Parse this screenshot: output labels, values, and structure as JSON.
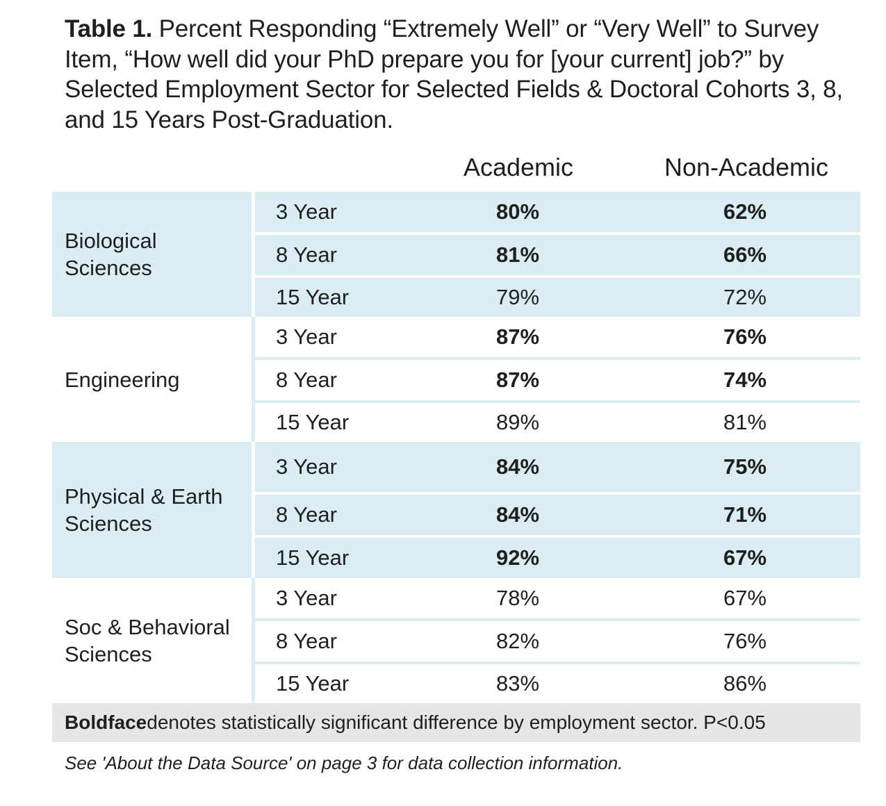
{
  "title": {
    "label": "Table 1.",
    "text": " Percent Responding “Extremely Well” or “Very Well” to Survey Item, “How well did your PhD prepare you for [your current] job?” by Selected Employment Sector for Selected Fields & Doctoral Cohorts 3, 8, and 15 Years Post-Graduation."
  },
  "columns": {
    "academic": "Academic",
    "non_academic": "Non-Academic"
  },
  "groups": [
    {
      "field": "Biological Sciences",
      "rows": [
        {
          "cohort": "3 Year",
          "academic": "80%",
          "non_academic": "62%"
        },
        {
          "cohort": "8 Year",
          "academic": "81%",
          "non_academic": "66%"
        },
        {
          "cohort": "15 Year",
          "academic": "79%",
          "non_academic": "72%"
        }
      ]
    },
    {
      "field": "Engineering",
      "rows": [
        {
          "cohort": "3 Year",
          "academic": "87%",
          "non_academic": "76%"
        },
        {
          "cohort": "8 Year",
          "academic": "87%",
          "non_academic": "74%"
        },
        {
          "cohort": "15 Year",
          "academic": "89%",
          "non_academic": "81%"
        }
      ]
    },
    {
      "field": "Physical & Earth Sciences",
      "rows": [
        {
          "cohort": "3 Year",
          "academic": "84%",
          "non_academic": "75%"
        },
        {
          "cohort": "8 Year",
          "academic": "84%",
          "non_academic": "71%"
        },
        {
          "cohort": "15 Year",
          "academic": "92%",
          "non_academic": "67%"
        }
      ]
    },
    {
      "field": "Soc & Behavioral Sciences",
      "rows": [
        {
          "cohort": "3 Year",
          "academic": "78%",
          "non_academic": "67%"
        },
        {
          "cohort": "8 Year",
          "academic": "82%",
          "non_academic": "76%"
        },
        {
          "cohort": "15 Year",
          "academic": "83%",
          "non_academic": "86%"
        }
      ]
    }
  ],
  "note": {
    "bold": "Boldface",
    "text": " denotes statistically significant difference by employment sector. P<0.05"
  },
  "footnote": "See 'About the Data Source' on page 3 for data collection information.",
  "colors": {
    "shade": "#d9edf3",
    "note_background": "#e6e6e6",
    "text": "#1f1f1f"
  }
}
